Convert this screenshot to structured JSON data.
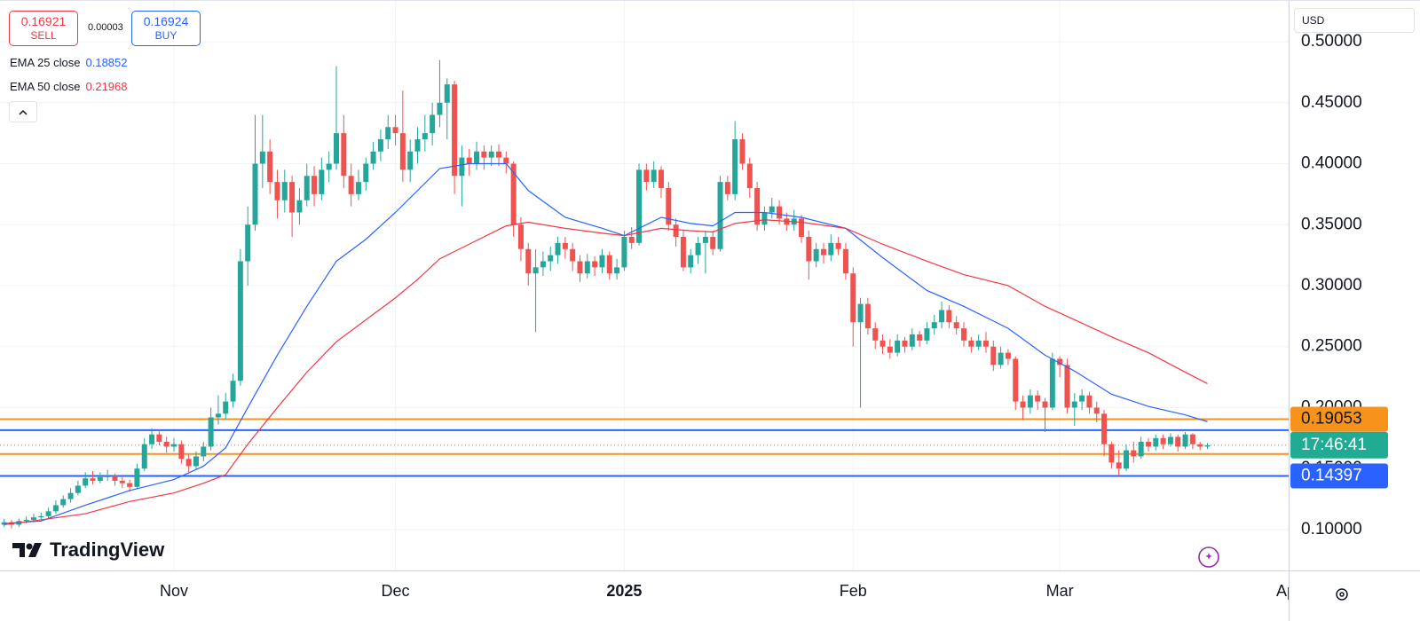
{
  "chart_data": {
    "type": "candlestick",
    "up_color": "#26a69a",
    "down_color": "#ef5350",
    "grid": true,
    "xlim": [
      -0.565,
      174
    ],
    "xticks": [
      {
        "value": 23,
        "label": "Nov"
      },
      {
        "value": 53,
        "label": "Dec"
      },
      {
        "value": 84,
        "label": "2025"
      },
      {
        "value": 115,
        "label": "Feb"
      },
      {
        "value": 143,
        "label": "Mar"
      },
      {
        "value": 174,
        "label": "Apr"
      }
    ],
    "ylim": [
      0.0665,
      0.5342
    ],
    "yticks": [
      {
        "value": 0.1,
        "label": "0.10000"
      },
      {
        "value": 0.15,
        "label": "0.15000"
      },
      {
        "value": 0.2,
        "label": "0.20000"
      },
      {
        "value": 0.25,
        "label": "0.25000"
      },
      {
        "value": 0.3,
        "label": "0.30000"
      },
      {
        "value": 0.35,
        "label": "0.35000"
      },
      {
        "value": 0.4,
        "label": "0.40000"
      },
      {
        "value": 0.45,
        "label": "0.45000"
      },
      {
        "value": 0.5,
        "label": "0.50000"
      }
    ],
    "ohlc": [
      [
        0.104,
        0.109,
        0.102,
        0.106
      ],
      [
        0.106,
        0.108,
        0.101,
        0.104
      ],
      [
        0.104,
        0.109,
        0.102,
        0.107
      ],
      [
        0.107,
        0.111,
        0.105,
        0.108
      ],
      [
        0.108,
        0.113,
        0.106,
        0.11
      ],
      [
        0.11,
        0.114,
        0.108,
        0.111
      ],
      [
        0.111,
        0.118,
        0.109,
        0.115
      ],
      [
        0.115,
        0.124,
        0.113,
        0.12
      ],
      [
        0.12,
        0.128,
        0.118,
        0.125
      ],
      [
        0.125,
        0.134,
        0.122,
        0.13
      ],
      [
        0.13,
        0.14,
        0.128,
        0.136
      ],
      [
        0.136,
        0.147,
        0.134,
        0.142
      ],
      [
        0.142,
        0.148,
        0.137,
        0.14
      ],
      [
        0.14,
        0.147,
        0.138,
        0.143
      ],
      [
        0.143,
        0.149,
        0.14,
        0.144
      ],
      [
        0.144,
        0.146,
        0.136,
        0.14
      ],
      [
        0.14,
        0.145,
        0.134,
        0.138
      ],
      [
        0.138,
        0.141,
        0.131,
        0.135
      ],
      [
        0.135,
        0.154,
        0.133,
        0.15
      ],
      [
        0.15,
        0.175,
        0.148,
        0.17
      ],
      [
        0.17,
        0.183,
        0.166,
        0.178
      ],
      [
        0.178,
        0.182,
        0.169,
        0.172
      ],
      [
        0.172,
        0.176,
        0.163,
        0.168
      ],
      [
        0.168,
        0.175,
        0.164,
        0.17
      ],
      [
        0.17,
        0.173,
        0.154,
        0.158
      ],
      [
        0.158,
        0.162,
        0.147,
        0.152
      ],
      [
        0.152,
        0.164,
        0.149,
        0.16
      ],
      [
        0.16,
        0.172,
        0.156,
        0.168
      ],
      [
        0.168,
        0.2,
        0.165,
        0.192
      ],
      [
        0.192,
        0.21,
        0.186,
        0.195
      ],
      [
        0.195,
        0.212,
        0.19,
        0.205
      ],
      [
        0.205,
        0.228,
        0.2,
        0.222
      ],
      [
        0.222,
        0.33,
        0.218,
        0.32
      ],
      [
        0.32,
        0.365,
        0.3,
        0.35
      ],
      [
        0.35,
        0.44,
        0.345,
        0.4
      ],
      [
        0.4,
        0.44,
        0.38,
        0.41
      ],
      [
        0.41,
        0.42,
        0.375,
        0.385
      ],
      [
        0.385,
        0.395,
        0.355,
        0.37
      ],
      [
        0.37,
        0.395,
        0.36,
        0.385
      ],
      [
        0.385,
        0.39,
        0.34,
        0.36
      ],
      [
        0.36,
        0.38,
        0.35,
        0.37
      ],
      [
        0.37,
        0.4,
        0.365,
        0.39
      ],
      [
        0.39,
        0.398,
        0.365,
        0.375
      ],
      [
        0.375,
        0.405,
        0.37,
        0.395
      ],
      [
        0.395,
        0.41,
        0.385,
        0.4
      ],
      [
        0.4,
        0.48,
        0.395,
        0.425
      ],
      [
        0.425,
        0.44,
        0.38,
        0.39
      ],
      [
        0.39,
        0.4,
        0.365,
        0.375
      ],
      [
        0.375,
        0.395,
        0.37,
        0.385
      ],
      [
        0.385,
        0.405,
        0.378,
        0.4
      ],
      [
        0.4,
        0.418,
        0.395,
        0.41
      ],
      [
        0.41,
        0.428,
        0.402,
        0.42
      ],
      [
        0.42,
        0.44,
        0.412,
        0.43
      ],
      [
        0.43,
        0.44,
        0.415,
        0.425
      ],
      [
        0.425,
        0.46,
        0.385,
        0.395
      ],
      [
        0.395,
        0.42,
        0.385,
        0.41
      ],
      [
        0.41,
        0.43,
        0.4,
        0.42
      ],
      [
        0.42,
        0.44,
        0.41,
        0.425
      ],
      [
        0.425,
        0.45,
        0.415,
        0.44
      ],
      [
        0.44,
        0.485,
        0.43,
        0.45
      ],
      [
        0.45,
        0.47,
        0.42,
        0.465
      ],
      [
        0.465,
        0.468,
        0.375,
        0.39
      ],
      [
        0.39,
        0.415,
        0.365,
        0.405
      ],
      [
        0.405,
        0.412,
        0.39,
        0.4
      ],
      [
        0.4,
        0.418,
        0.395,
        0.41
      ],
      [
        0.41,
        0.415,
        0.395,
        0.405
      ],
      [
        0.405,
        0.415,
        0.398,
        0.41
      ],
      [
        0.41,
        0.416,
        0.398,
        0.405
      ],
      [
        0.405,
        0.41,
        0.392,
        0.4
      ],
      [
        0.4,
        0.402,
        0.34,
        0.35
      ],
      [
        0.35,
        0.356,
        0.32,
        0.33
      ],
      [
        0.33,
        0.335,
        0.3,
        0.31
      ],
      [
        0.31,
        0.33,
        0.262,
        0.315
      ],
      [
        0.315,
        0.328,
        0.308,
        0.32
      ],
      [
        0.32,
        0.332,
        0.312,
        0.325
      ],
      [
        0.325,
        0.34,
        0.318,
        0.335
      ],
      [
        0.335,
        0.34,
        0.322,
        0.33
      ],
      [
        0.33,
        0.335,
        0.312,
        0.32
      ],
      [
        0.32,
        0.325,
        0.303,
        0.31
      ],
      [
        0.31,
        0.326,
        0.306,
        0.32
      ],
      [
        0.32,
        0.324,
        0.308,
        0.315
      ],
      [
        0.315,
        0.33,
        0.31,
        0.325
      ],
      [
        0.325,
        0.328,
        0.305,
        0.31
      ],
      [
        0.31,
        0.322,
        0.305,
        0.315
      ],
      [
        0.315,
        0.345,
        0.312,
        0.34
      ],
      [
        0.34,
        0.348,
        0.33,
        0.335
      ],
      [
        0.335,
        0.4,
        0.333,
        0.395
      ],
      [
        0.395,
        0.4,
        0.378,
        0.385
      ],
      [
        0.385,
        0.402,
        0.38,
        0.395
      ],
      [
        0.395,
        0.398,
        0.372,
        0.38
      ],
      [
        0.38,
        0.385,
        0.345,
        0.35
      ],
      [
        0.35,
        0.355,
        0.332,
        0.34
      ],
      [
        0.34,
        0.345,
        0.312,
        0.315
      ],
      [
        0.315,
        0.33,
        0.31,
        0.325
      ],
      [
        0.325,
        0.34,
        0.318,
        0.335
      ],
      [
        0.335,
        0.345,
        0.31,
        0.34
      ],
      [
        0.34,
        0.345,
        0.325,
        0.33
      ],
      [
        0.33,
        0.39,
        0.328,
        0.385
      ],
      [
        0.385,
        0.39,
        0.37,
        0.375
      ],
      [
        0.375,
        0.435,
        0.37,
        0.42
      ],
      [
        0.42,
        0.425,
        0.395,
        0.4
      ],
      [
        0.4,
        0.405,
        0.372,
        0.38
      ],
      [
        0.38,
        0.385,
        0.345,
        0.35
      ],
      [
        0.35,
        0.365,
        0.345,
        0.36
      ],
      [
        0.36,
        0.372,
        0.355,
        0.365
      ],
      [
        0.365,
        0.37,
        0.35,
        0.355
      ],
      [
        0.355,
        0.36,
        0.345,
        0.35
      ],
      [
        0.35,
        0.362,
        0.345,
        0.355
      ],
      [
        0.355,
        0.358,
        0.335,
        0.34
      ],
      [
        0.34,
        0.345,
        0.305,
        0.32
      ],
      [
        0.32,
        0.335,
        0.315,
        0.33
      ],
      [
        0.33,
        0.335,
        0.318,
        0.325
      ],
      [
        0.325,
        0.342,
        0.32,
        0.335
      ],
      [
        0.335,
        0.34,
        0.325,
        0.33
      ],
      [
        0.33,
        0.335,
        0.305,
        0.31
      ],
      [
        0.31,
        0.315,
        0.25,
        0.27
      ],
      [
        0.27,
        0.29,
        0.2,
        0.285
      ],
      [
        0.285,
        0.29,
        0.26,
        0.265
      ],
      [
        0.265,
        0.27,
        0.248,
        0.255
      ],
      [
        0.255,
        0.26,
        0.244,
        0.25
      ],
      [
        0.25,
        0.256,
        0.24,
        0.245
      ],
      [
        0.245,
        0.26,
        0.242,
        0.255
      ],
      [
        0.255,
        0.258,
        0.245,
        0.25
      ],
      [
        0.25,
        0.265,
        0.247,
        0.26
      ],
      [
        0.26,
        0.263,
        0.25,
        0.255
      ],
      [
        0.255,
        0.27,
        0.252,
        0.265
      ],
      [
        0.265,
        0.276,
        0.26,
        0.27
      ],
      [
        0.27,
        0.287,
        0.265,
        0.28
      ],
      [
        0.28,
        0.284,
        0.265,
        0.27
      ],
      [
        0.27,
        0.275,
        0.26,
        0.265
      ],
      [
        0.265,
        0.27,
        0.25,
        0.255
      ],
      [
        0.255,
        0.258,
        0.245,
        0.25
      ],
      [
        0.25,
        0.26,
        0.247,
        0.255
      ],
      [
        0.255,
        0.262,
        0.245,
        0.25
      ],
      [
        0.25,
        0.255,
        0.23,
        0.235
      ],
      [
        0.235,
        0.25,
        0.232,
        0.245
      ],
      [
        0.245,
        0.248,
        0.235,
        0.24
      ],
      [
        0.24,
        0.242,
        0.198,
        0.205
      ],
      [
        0.205,
        0.21,
        0.19,
        0.2
      ],
      [
        0.2,
        0.215,
        0.195,
        0.21
      ],
      [
        0.21,
        0.214,
        0.198,
        0.205
      ],
      [
        0.205,
        0.208,
        0.18,
        0.2
      ],
      [
        0.2,
        0.245,
        0.198,
        0.24
      ],
      [
        0.24,
        0.242,
        0.225,
        0.235
      ],
      [
        0.235,
        0.24,
        0.195,
        0.2
      ],
      [
        0.2,
        0.212,
        0.185,
        0.205
      ],
      [
        0.205,
        0.215,
        0.198,
        0.21
      ],
      [
        0.21,
        0.213,
        0.195,
        0.2
      ],
      [
        0.2,
        0.205,
        0.188,
        0.195
      ],
      [
        0.195,
        0.198,
        0.16,
        0.17
      ],
      [
        0.17,
        0.172,
        0.15,
        0.155
      ],
      [
        0.155,
        0.165,
        0.143,
        0.15
      ],
      [
        0.15,
        0.17,
        0.148,
        0.165
      ],
      [
        0.165,
        0.172,
        0.155,
        0.16
      ],
      [
        0.16,
        0.176,
        0.158,
        0.172
      ],
      [
        0.172,
        0.175,
        0.164,
        0.168
      ],
      [
        0.168,
        0.178,
        0.165,
        0.175
      ],
      [
        0.175,
        0.178,
        0.166,
        0.17
      ],
      [
        0.17,
        0.179,
        0.168,
        0.176
      ],
      [
        0.176,
        0.178,
        0.164,
        0.168
      ],
      [
        0.168,
        0.18,
        0.166,
        0.178
      ],
      [
        0.178,
        0.179,
        0.166,
        0.17
      ],
      [
        0.17,
        0.172,
        0.165,
        0.168
      ],
      [
        0.168,
        0.171,
        0.166,
        0.1692
      ]
    ],
    "series": [
      {
        "name": "EMA 25 close",
        "color": "#2962ff",
        "last_value": 0.18852,
        "x": [
          0,
          5,
          11,
          17,
          23,
          27,
          30,
          33,
          37,
          41,
          45,
          49,
          53,
          56,
          59,
          63,
          68,
          71,
          76,
          81,
          84,
          89,
          93,
          96,
          99,
          103,
          108,
          114,
          119,
          125,
          130,
          136,
          141,
          145,
          150,
          155,
          160,
          163
        ],
        "values": [
          0.105,
          0.107,
          0.12,
          0.132,
          0.141,
          0.152,
          0.167,
          0.2,
          0.243,
          0.283,
          0.32,
          0.338,
          0.36,
          0.378,
          0.396,
          0.4,
          0.4,
          0.378,
          0.356,
          0.347,
          0.341,
          0.356,
          0.351,
          0.349,
          0.36,
          0.36,
          0.356,
          0.347,
          0.323,
          0.296,
          0.283,
          0.265,
          0.243,
          0.23,
          0.211,
          0.201,
          0.194,
          0.18852
        ]
      },
      {
        "name": "EMA 50 close",
        "color": "#f23645",
        "last_value": 0.21968,
        "x": [
          0,
          5,
          11,
          17,
          23,
          27,
          30,
          33,
          37,
          41,
          45,
          49,
          53,
          56,
          59,
          63,
          68,
          71,
          76,
          81,
          84,
          89,
          93,
          96,
          99,
          103,
          108,
          114,
          119,
          125,
          130,
          136,
          141,
          145,
          150,
          155,
          160,
          163
        ],
        "values": [
          0.104,
          0.108,
          0.113,
          0.123,
          0.13,
          0.138,
          0.145,
          0.17,
          0.2,
          0.229,
          0.254,
          0.272,
          0.29,
          0.305,
          0.322,
          0.334,
          0.349,
          0.352,
          0.347,
          0.343,
          0.341,
          0.347,
          0.345,
          0.344,
          0.351,
          0.354,
          0.352,
          0.347,
          0.334,
          0.32,
          0.309,
          0.3,
          0.283,
          0.272,
          0.258,
          0.245,
          0.229,
          0.21968
        ]
      }
    ],
    "levels": [
      {
        "value": 0.19053,
        "color": "#f7931a",
        "show_label": true,
        "text_color": "#131722"
      },
      {
        "value": 0.1815,
        "color": "#2962ff",
        "show_label": false
      },
      {
        "value": 0.162,
        "color": "#f7931a",
        "show_label": false
      },
      {
        "value": 0.14397,
        "color": "#2962ff",
        "show_label": true,
        "text_color": "#ffffff"
      }
    ],
    "last_price": 0.1692,
    "countdown": "17:46:41",
    "countdown_color": "#22ab94"
  },
  "toolbar": {
    "sell_price": 0.16921,
    "sell_label": "SELL",
    "spread": 3e-05,
    "buy_price": 0.16924,
    "buy_label": "BUY",
    "currency": "USD",
    "brand": "TradingView"
  }
}
